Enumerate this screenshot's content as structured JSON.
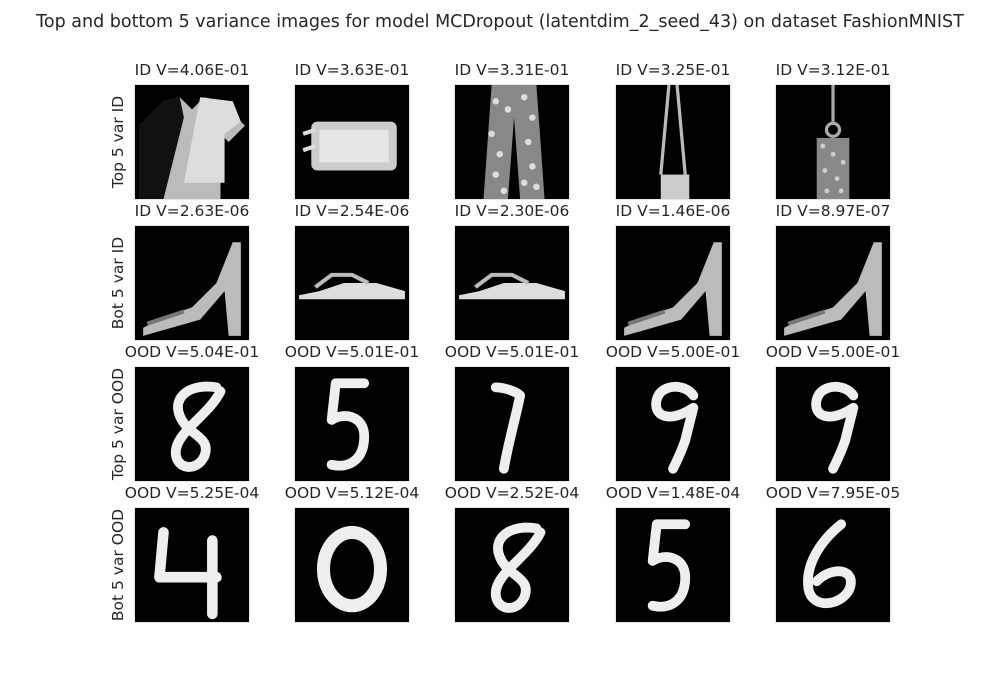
{
  "title": "Top and bottom 5 variance images for model MCDropout (latentdim_2_seed_43) on dataset FashionMNIST",
  "chart_data": {
    "type": "image-grid",
    "rows": [
      {
        "label": "Top 5 var ID",
        "panels": [
          {
            "title": "ID V=4.06E-01",
            "variance": 0.406,
            "icon": "tshirt-icon"
          },
          {
            "title": "ID V=3.63E-01",
            "variance": 0.363,
            "icon": "bag-icon"
          },
          {
            "title": "ID V=3.31E-01",
            "variance": 0.331,
            "icon": "trousers-icon"
          },
          {
            "title": "ID V=3.25E-01",
            "variance": 0.325,
            "icon": "handbag-icon"
          },
          {
            "title": "ID V=3.12E-01",
            "variance": 0.312,
            "icon": "purse-icon"
          }
        ]
      },
      {
        "label": "Bot 5 var ID",
        "panels": [
          {
            "title": "ID V=2.63E-06",
            "variance": 2.63e-06,
            "icon": "high-heel-icon"
          },
          {
            "title": "ID V=2.54E-06",
            "variance": 2.54e-06,
            "icon": "sandal-icon"
          },
          {
            "title": "ID V=2.30E-06",
            "variance": 2.3e-06,
            "icon": "sandal-icon"
          },
          {
            "title": "ID V=1.46E-06",
            "variance": 1.46e-06,
            "icon": "high-heel-icon"
          },
          {
            "title": "ID V=8.97E-07",
            "variance": 8.97e-07,
            "icon": "high-heel-icon"
          }
        ]
      },
      {
        "label": "Top 5 var OOD",
        "panels": [
          {
            "title": "OOD V=5.04E-01",
            "variance": 0.504,
            "icon": "digit-8-icon"
          },
          {
            "title": "OOD V=5.01E-01",
            "variance": 0.501,
            "icon": "digit-5-icon"
          },
          {
            "title": "OOD V=5.01E-01",
            "variance": 0.501,
            "icon": "digit-7-icon"
          },
          {
            "title": "OOD V=5.00E-01",
            "variance": 0.5,
            "icon": "digit-9-icon"
          },
          {
            "title": "OOD V=5.00E-01",
            "variance": 0.5,
            "icon": "digit-9-icon"
          }
        ]
      },
      {
        "label": "Bot 5 var OOD",
        "panels": [
          {
            "title": "OOD V=5.25E-04",
            "variance": 0.000525,
            "icon": "digit-4-icon"
          },
          {
            "title": "OOD V=5.12E-04",
            "variance": 0.000512,
            "icon": "digit-0-icon"
          },
          {
            "title": "OOD V=2.52E-04",
            "variance": 0.000252,
            "icon": "digit-8-icon"
          },
          {
            "title": "OOD V=1.48E-04",
            "variance": 0.000148,
            "icon": "digit-5-icon"
          },
          {
            "title": "OOD V=7.95E-05",
            "variance": 7.95e-05,
            "icon": "digit-6-icon"
          }
        ]
      }
    ]
  }
}
